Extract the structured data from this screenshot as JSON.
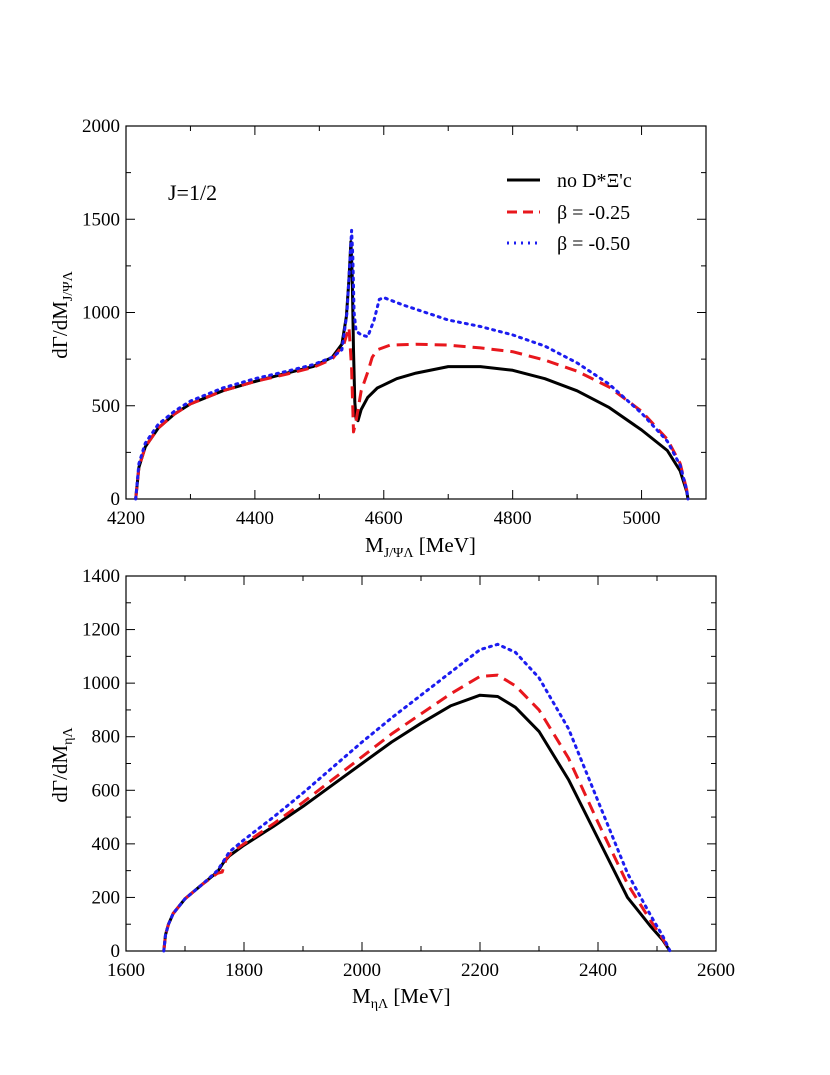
{
  "chart_data": [
    {
      "type": "line",
      "xlabel": "M",
      "xlabel_sub": "J/ΨΛ",
      "xlabel_unit": " [MeV]",
      "ylabel": "dΓ/dM",
      "ylabel_sub": "J/ΨΛ",
      "xlim": [
        4200,
        5100
      ],
      "ylim": [
        0,
        2000
      ],
      "xticks": [
        4200,
        4400,
        4600,
        4800,
        5000
      ],
      "yticks": [
        0,
        500,
        1000,
        1500,
        2000
      ],
      "annotation": "J=1/2",
      "legend_position": "top-right",
      "grid": false,
      "series": [
        {
          "name": "no D*Ξ'c",
          "color": "#000000",
          "style": "solid",
          "points": [
            [
              4215,
              0
            ],
            [
              4220,
              170
            ],
            [
              4230,
              280
            ],
            [
              4250,
              380
            ],
            [
              4275,
              455
            ],
            [
              4300,
              510
            ],
            [
              4350,
              580
            ],
            [
              4400,
              630
            ],
            [
              4450,
              675
            ],
            [
              4490,
              710
            ],
            [
              4520,
              760
            ],
            [
              4535,
              830
            ],
            [
              4542,
              980
            ],
            [
              4546,
              1180
            ],
            [
              4549,
              1380
            ],
            [
              4551,
              1200
            ],
            [
              4553,
              800
            ],
            [
              4555,
              520
            ],
            [
              4557,
              430
            ],
            [
              4560,
              420
            ],
            [
              4565,
              480
            ],
            [
              4575,
              545
            ],
            [
              4590,
              595
            ],
            [
              4620,
              645
            ],
            [
              4650,
              675
            ],
            [
              4700,
              710
            ],
            [
              4750,
              710
            ],
            [
              4800,
              690
            ],
            [
              4850,
              645
            ],
            [
              4900,
              580
            ],
            [
              4950,
              490
            ],
            [
              5000,
              370
            ],
            [
              5040,
              260
            ],
            [
              5060,
              150
            ],
            [
              5070,
              40
            ],
            [
              5072,
              0
            ]
          ]
        },
        {
          "name": "β = -0.25",
          "color": "#e8171d",
          "style": "dashed",
          "points": [
            [
              4215,
              0
            ],
            [
              4220,
              170
            ],
            [
              4230,
              280
            ],
            [
              4250,
              380
            ],
            [
              4275,
              455
            ],
            [
              4300,
              510
            ],
            [
              4350,
              580
            ],
            [
              4400,
              630
            ],
            [
              4450,
              670
            ],
            [
              4490,
              705
            ],
            [
              4520,
              750
            ],
            [
              4538,
              830
            ],
            [
              4546,
              920
            ],
            [
              4550,
              700
            ],
            [
              4553,
              360
            ],
            [
              4557,
              420
            ],
            [
              4565,
              580
            ],
            [
              4575,
              680
            ],
            [
              4582,
              760
            ],
            [
              4590,
              800
            ],
            [
              4610,
              825
            ],
            [
              4650,
              830
            ],
            [
              4700,
              825
            ],
            [
              4750,
              810
            ],
            [
              4800,
              790
            ],
            [
              4850,
              745
            ],
            [
              4900,
              685
            ],
            [
              4950,
              600
            ],
            [
              5000,
              470
            ],
            [
              5040,
              320
            ],
            [
              5060,
              190
            ],
            [
              5070,
              50
            ],
            [
              5072,
              0
            ]
          ]
        },
        {
          "name": "β = -0.50",
          "color": "#1c1cf0",
          "style": "dotted",
          "points": [
            [
              4215,
              0
            ],
            [
              4220,
              190
            ],
            [
              4230,
              300
            ],
            [
              4250,
              400
            ],
            [
              4275,
              470
            ],
            [
              4300,
              525
            ],
            [
              4350,
              595
            ],
            [
              4400,
              645
            ],
            [
              4450,
              685
            ],
            [
              4490,
              720
            ],
            [
              4520,
              760
            ],
            [
              4535,
              800
            ],
            [
              4543,
              1000
            ],
            [
              4547,
              1250
            ],
            [
              4550,
              1440
            ],
            [
              4552,
              1300
            ],
            [
              4554,
              1000
            ],
            [
              4557,
              900
            ],
            [
              4565,
              880
            ],
            [
              4575,
              870
            ],
            [
              4585,
              960
            ],
            [
              4593,
              1070
            ],
            [
              4600,
              1080
            ],
            [
              4630,
              1040
            ],
            [
              4700,
              960
            ],
            [
              4750,
              925
            ],
            [
              4800,
              880
            ],
            [
              4850,
              820
            ],
            [
              4900,
              730
            ],
            [
              4950,
              615
            ],
            [
              5000,
              460
            ],
            [
              5040,
              310
            ],
            [
              5060,
              180
            ],
            [
              5070,
              50
            ],
            [
              5072,
              0
            ]
          ]
        }
      ]
    },
    {
      "type": "line",
      "xlabel": "M",
      "xlabel_sub": "ηΛ",
      "xlabel_unit": " [MeV]",
      "ylabel": "dΓ/dM",
      "ylabel_sub": "ηΛ",
      "xlim": [
        1600,
        2600
      ],
      "ylim": [
        0,
        1400
      ],
      "xticks": [
        1600,
        1800,
        2000,
        2200,
        2400,
        2600
      ],
      "yticks": [
        0,
        200,
        400,
        600,
        800,
        1000,
        1200,
        1400
      ],
      "grid": false,
      "series": [
        {
          "name": "no D*Ξ'c",
          "color": "#000000",
          "style": "solid",
          "points": [
            [
              1664,
              0
            ],
            [
              1667,
              60
            ],
            [
              1672,
              100
            ],
            [
              1680,
              140
            ],
            [
              1700,
              195
            ],
            [
              1730,
              250
            ],
            [
              1755,
              295
            ],
            [
              1765,
              330
            ],
            [
              1775,
              355
            ],
            [
              1800,
              395
            ],
            [
              1850,
              465
            ],
            [
              1900,
              540
            ],
            [
              1950,
              620
            ],
            [
              2000,
              700
            ],
            [
              2050,
              780
            ],
            [
              2100,
              850
            ],
            [
              2150,
              915
            ],
            [
              2200,
              955
            ],
            [
              2230,
              950
            ],
            [
              2260,
              910
            ],
            [
              2300,
              820
            ],
            [
              2350,
              640
            ],
            [
              2400,
              420
            ],
            [
              2450,
              200
            ],
            [
              2490,
              90
            ],
            [
              2510,
              40
            ],
            [
              2522,
              0
            ]
          ]
        },
        {
          "name": "β = -0.25",
          "color": "#e8171d",
          "style": "dashed",
          "points": [
            [
              1664,
              0
            ],
            [
              1667,
              60
            ],
            [
              1672,
              100
            ],
            [
              1680,
              140
            ],
            [
              1700,
              195
            ],
            [
              1730,
              250
            ],
            [
              1755,
              290
            ],
            [
              1763,
              295
            ],
            [
              1770,
              345
            ],
            [
              1780,
              370
            ],
            [
              1800,
              400
            ],
            [
              1850,
              475
            ],
            [
              1900,
              555
            ],
            [
              1950,
              640
            ],
            [
              2000,
              725
            ],
            [
              2050,
              810
            ],
            [
              2100,
              885
            ],
            [
              2150,
              960
            ],
            [
              2200,
              1025
            ],
            [
              2230,
              1030
            ],
            [
              2260,
              990
            ],
            [
              2300,
              900
            ],
            [
              2350,
              720
            ],
            [
              2400,
              480
            ],
            [
              2450,
              250
            ],
            [
              2490,
              110
            ],
            [
              2510,
              45
            ],
            [
              2522,
              0
            ]
          ]
        },
        {
          "name": "β = -0.50",
          "color": "#1c1cf0",
          "style": "dotted",
          "points": [
            [
              1664,
              0
            ],
            [
              1667,
              60
            ],
            [
              1672,
              100
            ],
            [
              1680,
              140
            ],
            [
              1700,
              195
            ],
            [
              1730,
              250
            ],
            [
              1755,
              300
            ],
            [
              1765,
              335
            ],
            [
              1775,
              370
            ],
            [
              1800,
              415
            ],
            [
              1850,
              500
            ],
            [
              1900,
              590
            ],
            [
              1950,
              685
            ],
            [
              2000,
              780
            ],
            [
              2050,
              870
            ],
            [
              2100,
              955
            ],
            [
              2150,
              1040
            ],
            [
              2200,
              1125
            ],
            [
              2230,
              1145
            ],
            [
              2260,
              1115
            ],
            [
              2300,
              1020
            ],
            [
              2350,
              830
            ],
            [
              2400,
              560
            ],
            [
              2450,
              290
            ],
            [
              2490,
              130
            ],
            [
              2510,
              55
            ],
            [
              2522,
              0
            ]
          ]
        }
      ]
    }
  ]
}
